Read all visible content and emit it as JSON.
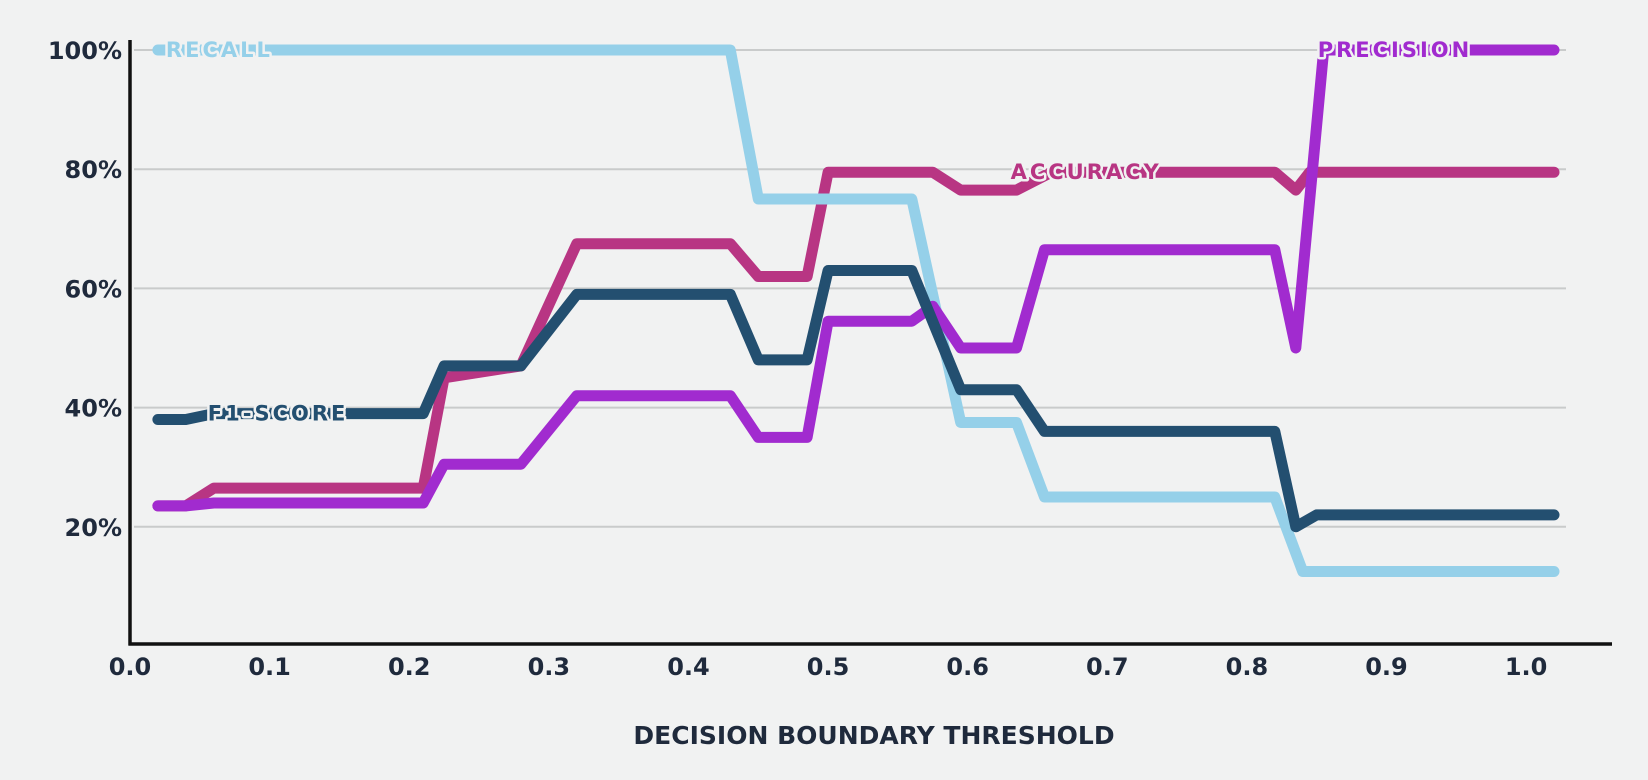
{
  "chart_data": {
    "type": "line",
    "title": "",
    "xlabel": "DECISION BOUNDARY THRESHOLD",
    "ylabel": "",
    "xlim": [
      0.0,
      1.03
    ],
    "ylim": [
      0,
      100
    ],
    "grid": true,
    "x_ticks": [
      {
        "value": 0.0,
        "label": "0.0"
      },
      {
        "value": 0.1,
        "label": "0.1"
      },
      {
        "value": 0.2,
        "label": "0.2"
      },
      {
        "value": 0.3,
        "label": "0.3"
      },
      {
        "value": 0.4,
        "label": "0.4"
      },
      {
        "value": 0.5,
        "label": "0.5"
      },
      {
        "value": 0.6,
        "label": "0.6"
      },
      {
        "value": 0.7,
        "label": "0.7"
      },
      {
        "value": 0.8,
        "label": "0.8"
      },
      {
        "value": 0.9,
        "label": "0.9"
      },
      {
        "value": 1.0,
        "label": "1.0"
      }
    ],
    "y_ticks": [
      {
        "value": 20,
        "label": "20%"
      },
      {
        "value": 40,
        "label": "40%"
      },
      {
        "value": 60,
        "label": "60%"
      },
      {
        "value": 80,
        "label": "80%"
      },
      {
        "value": 100,
        "label": "100%"
      }
    ],
    "series": [
      {
        "name": "ACCURACY",
        "color": "#b83583",
        "label_at": [
          0.625,
          79.5
        ],
        "points": [
          [
            0.02,
            23.5
          ],
          [
            0.04,
            23.5
          ],
          [
            0.06,
            26.5
          ],
          [
            0.21,
            26.5
          ],
          [
            0.225,
            45
          ],
          [
            0.28,
            47
          ],
          [
            0.32,
            67.5
          ],
          [
            0.43,
            67.5
          ],
          [
            0.45,
            62
          ],
          [
            0.485,
            62
          ],
          [
            0.5,
            79.5
          ],
          [
            0.575,
            79.5
          ],
          [
            0.595,
            76.5
          ],
          [
            0.635,
            76.5
          ],
          [
            0.66,
            79.5
          ],
          [
            0.82,
            79.5
          ],
          [
            0.835,
            76.5
          ],
          [
            0.845,
            79.5
          ],
          [
            1.02,
            79.5
          ]
        ]
      },
      {
        "name": "RECALL",
        "color": "#95d0e9",
        "label_at": [
          0.02,
          100
        ],
        "points": [
          [
            0.02,
            100
          ],
          [
            0.43,
            100
          ],
          [
            0.45,
            75
          ],
          [
            0.56,
            75
          ],
          [
            0.595,
            37.5
          ],
          [
            0.635,
            37.5
          ],
          [
            0.655,
            25
          ],
          [
            0.82,
            25
          ],
          [
            0.84,
            12.5
          ],
          [
            1.02,
            12.5
          ]
        ]
      },
      {
        "name": "PRECISION",
        "color": "#a12bcf",
        "label_at": [
          0.845,
          100
        ],
        "points": [
          [
            0.02,
            23.5
          ],
          [
            0.04,
            23.5
          ],
          [
            0.06,
            24
          ],
          [
            0.21,
            24
          ],
          [
            0.225,
            30.5
          ],
          [
            0.28,
            30.5
          ],
          [
            0.32,
            42
          ],
          [
            0.43,
            42
          ],
          [
            0.45,
            35
          ],
          [
            0.485,
            35
          ],
          [
            0.5,
            54.5
          ],
          [
            0.56,
            54.5
          ],
          [
            0.575,
            57
          ],
          [
            0.595,
            50
          ],
          [
            0.635,
            50
          ],
          [
            0.655,
            66.5
          ],
          [
            0.82,
            66.5
          ],
          [
            0.835,
            50
          ],
          [
            0.855,
            100
          ],
          [
            1.02,
            100
          ]
        ]
      },
      {
        "name": "F1-SCORE",
        "color": "#234f70",
        "label_at": [
          0.05,
          39
        ],
        "points": [
          [
            0.02,
            38
          ],
          [
            0.04,
            38
          ],
          [
            0.06,
            39
          ],
          [
            0.21,
            39
          ],
          [
            0.225,
            47
          ],
          [
            0.28,
            47
          ],
          [
            0.32,
            59
          ],
          [
            0.43,
            59
          ],
          [
            0.45,
            48
          ],
          [
            0.485,
            48
          ],
          [
            0.5,
            63
          ],
          [
            0.56,
            63
          ],
          [
            0.595,
            43
          ],
          [
            0.635,
            43
          ],
          [
            0.655,
            36
          ],
          [
            0.82,
            36
          ],
          [
            0.835,
            20
          ],
          [
            0.85,
            22
          ],
          [
            1.02,
            22
          ]
        ]
      }
    ]
  }
}
